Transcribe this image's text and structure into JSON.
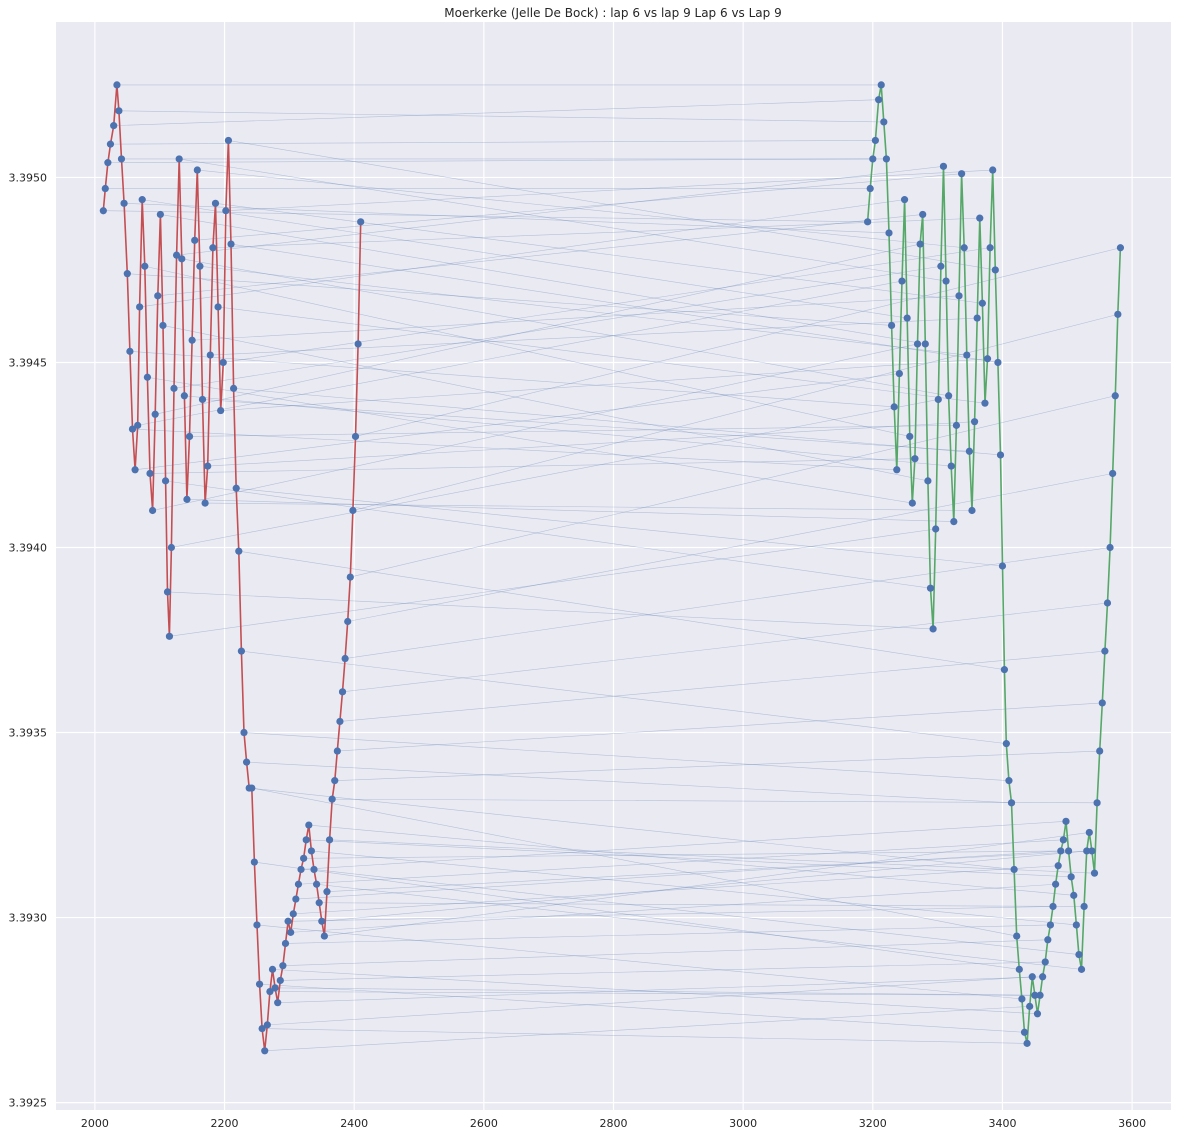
{
  "chart_data": {
    "type": "line",
    "title": "Moerkerke (Jelle De Bock) : lap 6 vs lap 9 Lap 6 vs Lap 9",
    "xlabel": "",
    "ylabel": "",
    "xlim": [
      1940,
      3660
    ],
    "ylim": [
      3.39248,
      3.39542
    ],
    "x_ticks": [
      "2000",
      "2200",
      "2400",
      "2600",
      "2800",
      "3000",
      "3200",
      "3400",
      "3600"
    ],
    "y_ticks": [
      "3.3925",
      "3.3930",
      "3.3935",
      "3.3940",
      "3.3945",
      "3.3950"
    ],
    "grid": true,
    "legend": "none",
    "colors": {
      "background": "#EAEAF2",
      "grid": "#FFFFFF",
      "lap6_line": "#C44E52",
      "lap9_line": "#55A868",
      "markers": "#4C72B0",
      "connectors": "#4C72B0"
    },
    "series": [
      {
        "line_color": "#C44E52",
        "points": [
          [
            2013,
            3.39491
          ],
          [
            2016,
            3.39497
          ],
          [
            2020,
            3.39504
          ],
          [
            2024,
            3.39509
          ],
          [
            2029,
            3.39514
          ],
          [
            2034,
            3.39525
          ],
          [
            2037,
            3.39518
          ],
          [
            2041,
            3.39505
          ],
          [
            2045,
            3.39493
          ],
          [
            2050,
            3.39474
          ],
          [
            2054,
            3.39453
          ],
          [
            2058,
            3.39432
          ],
          [
            2062,
            3.39421
          ],
          [
            2066,
            3.39433
          ],
          [
            2069,
            3.39465
          ],
          [
            2073,
            3.39494
          ],
          [
            2077,
            3.39476
          ],
          [
            2081,
            3.39446
          ],
          [
            2085,
            3.3942
          ],
          [
            2089,
            3.3941
          ],
          [
            2093,
            3.39436
          ],
          [
            2097,
            3.39468
          ],
          [
            2101,
            3.3949
          ],
          [
            2105,
            3.3946
          ],
          [
            2109,
            3.39418
          ],
          [
            2112,
            3.39388
          ],
          [
            2115,
            3.39376
          ],
          [
            2118,
            3.394
          ],
          [
            2122,
            3.39443
          ],
          [
            2126,
            3.39479
          ],
          [
            2130,
            3.39505
          ],
          [
            2134,
            3.39478
          ],
          [
            2138,
            3.39441
          ],
          [
            2142,
            3.39413
          ],
          [
            2146,
            3.3943
          ],
          [
            2150,
            3.39456
          ],
          [
            2154,
            3.39483
          ],
          [
            2158,
            3.39502
          ],
          [
            2162,
            3.39476
          ],
          [
            2166,
            3.3944
          ],
          [
            2170,
            3.39412
          ],
          [
            2174,
            3.39422
          ],
          [
            2178,
            3.39452
          ],
          [
            2182,
            3.39481
          ],
          [
            2186,
            3.39493
          ],
          [
            2190,
            3.39465
          ],
          [
            2194,
            3.39437
          ],
          [
            2198,
            3.3945
          ],
          [
            2202,
            3.39491
          ],
          [
            2206,
            3.3951
          ],
          [
            2210,
            3.39482
          ],
          [
            2214,
            3.39443
          ],
          [
            2218,
            3.39416
          ],
          [
            2222,
            3.39399
          ],
          [
            2226,
            3.39372
          ],
          [
            2230,
            3.3935
          ],
          [
            2234,
            3.39342
          ],
          [
            2238,
            3.39335
          ],
          [
            2242,
            3.39335
          ],
          [
            2246,
            3.39315
          ],
          [
            2250,
            3.39298
          ],
          [
            2254,
            3.39282
          ],
          [
            2258,
            3.3927
          ],
          [
            2262,
            3.39264
          ],
          [
            2266,
            3.39271
          ],
          [
            2270,
            3.3928
          ],
          [
            2274,
            3.39286
          ],
          [
            2278,
            3.39281
          ],
          [
            2282,
            3.39277
          ],
          [
            2286,
            3.39283
          ],
          [
            2290,
            3.39287
          ],
          [
            2294,
            3.39293
          ],
          [
            2298,
            3.39299
          ],
          [
            2302,
            3.39296
          ],
          [
            2306,
            3.39301
          ],
          [
            2310,
            3.39305
          ],
          [
            2314,
            3.39309
          ],
          [
            2318,
            3.39313
          ],
          [
            2322,
            3.39316
          ],
          [
            2326,
            3.39321
          ],
          [
            2330,
            3.39325
          ],
          [
            2334,
            3.39318
          ],
          [
            2338,
            3.39313
          ],
          [
            2342,
            3.39309
          ],
          [
            2346,
            3.39304
          ],
          [
            2350,
            3.39299
          ],
          [
            2354,
            3.39295
          ],
          [
            2358,
            3.39307
          ],
          [
            2362,
            3.39321
          ],
          [
            2366,
            3.39332
          ],
          [
            2370,
            3.39337
          ],
          [
            2374,
            3.39345
          ],
          [
            2378,
            3.39353
          ],
          [
            2382,
            3.39361
          ],
          [
            2386,
            3.3937
          ],
          [
            2390,
            3.3938
          ],
          [
            2394,
            3.39392
          ],
          [
            2398,
            3.3941
          ],
          [
            2402,
            3.3943
          ],
          [
            2406,
            3.39455
          ],
          [
            2410,
            3.39488
          ]
        ]
      },
      {
        "line_color": "#55A868",
        "points": [
          [
            3192,
            3.39488
          ],
          [
            3196,
            3.39497
          ],
          [
            3200,
            3.39505
          ],
          [
            3204,
            3.3951
          ],
          [
            3209,
            3.39521
          ],
          [
            3213,
            3.39525
          ],
          [
            3217,
            3.39515
          ],
          [
            3221,
            3.39505
          ],
          [
            3225,
            3.39485
          ],
          [
            3229,
            3.3946
          ],
          [
            3233,
            3.39438
          ],
          [
            3237,
            3.39421
          ],
          [
            3241,
            3.39447
          ],
          [
            3245,
            3.39472
          ],
          [
            3249,
            3.39494
          ],
          [
            3253,
            3.39462
          ],
          [
            3257,
            3.3943
          ],
          [
            3261,
            3.39412
          ],
          [
            3265,
            3.39424
          ],
          [
            3269,
            3.39455
          ],
          [
            3273,
            3.39482
          ],
          [
            3277,
            3.3949
          ],
          [
            3281,
            3.39455
          ],
          [
            3285,
            3.39418
          ],
          [
            3289,
            3.39389
          ],
          [
            3293,
            3.39378
          ],
          [
            3297,
            3.39405
          ],
          [
            3301,
            3.3944
          ],
          [
            3305,
            3.39476
          ],
          [
            3309,
            3.39503
          ],
          [
            3313,
            3.39472
          ],
          [
            3317,
            3.39441
          ],
          [
            3321,
            3.39422
          ],
          [
            3325,
            3.39407
          ],
          [
            3329,
            3.39433
          ],
          [
            3333,
            3.39468
          ],
          [
            3337,
            3.39501
          ],
          [
            3341,
            3.39481
          ],
          [
            3345,
            3.39452
          ],
          [
            3349,
            3.39426
          ],
          [
            3353,
            3.3941
          ],
          [
            3357,
            3.39434
          ],
          [
            3361,
            3.39462
          ],
          [
            3365,
            3.39489
          ],
          [
            3369,
            3.39466
          ],
          [
            3373,
            3.39439
          ],
          [
            3377,
            3.39451
          ],
          [
            3381,
            3.39481
          ],
          [
            3385,
            3.39502
          ],
          [
            3389,
            3.39475
          ],
          [
            3393,
            3.3945
          ],
          [
            3397,
            3.39425
          ],
          [
            3400,
            3.39395
          ],
          [
            3403,
            3.39367
          ],
          [
            3406,
            3.39347
          ],
          [
            3410,
            3.39337
          ],
          [
            3414,
            3.39331
          ],
          [
            3418,
            3.39313
          ],
          [
            3422,
            3.39295
          ],
          [
            3426,
            3.39286
          ],
          [
            3430,
            3.39278
          ],
          [
            3434,
            3.39269
          ],
          [
            3438,
            3.39266
          ],
          [
            3442,
            3.39276
          ],
          [
            3446,
            3.39284
          ],
          [
            3450,
            3.39279
          ],
          [
            3454,
            3.39274
          ],
          [
            3458,
            3.39279
          ],
          [
            3462,
            3.39284
          ],
          [
            3466,
            3.39288
          ],
          [
            3470,
            3.39294
          ],
          [
            3474,
            3.39298
          ],
          [
            3478,
            3.39303
          ],
          [
            3482,
            3.39309
          ],
          [
            3486,
            3.39314
          ],
          [
            3490,
            3.39318
          ],
          [
            3494,
            3.39321
          ],
          [
            3498,
            3.39326
          ],
          [
            3502,
            3.39318
          ],
          [
            3506,
            3.39311
          ],
          [
            3510,
            3.39306
          ],
          [
            3514,
            3.39298
          ],
          [
            3518,
            3.3929
          ],
          [
            3522,
            3.39286
          ],
          [
            3526,
            3.39303
          ],
          [
            3530,
            3.39318
          ],
          [
            3534,
            3.39323
          ],
          [
            3538,
            3.39318
          ],
          [
            3542,
            3.39312
          ],
          [
            3546,
            3.39331
          ],
          [
            3550,
            3.39345
          ],
          [
            3554,
            3.39358
          ],
          [
            3558,
            3.39372
          ],
          [
            3562,
            3.39385
          ],
          [
            3566,
            3.394
          ],
          [
            3570,
            3.3942
          ],
          [
            3574,
            3.39441
          ],
          [
            3578,
            3.39463
          ],
          [
            3582,
            3.39481
          ]
        ]
      }
    ]
  }
}
